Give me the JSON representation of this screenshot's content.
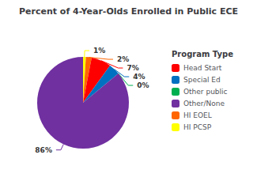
{
  "chart_data": {
    "type": "pie",
    "title": "Percent of 4-Year-Olds Enrolled in Public ECE",
    "categories": [
      "HI PCSP",
      "HI EOEL",
      "Head Start",
      "Special Ed",
      "Other public",
      "Other/None"
    ],
    "values": [
      1,
      2,
      7,
      4,
      0,
      86
    ],
    "value_labels": [
      "1%",
      "2%",
      "7%",
      "4%",
      "0%",
      "86%"
    ],
    "colors": [
      "#FFFF00",
      "#FF6600",
      "#FF0000",
      "#0070C0",
      "#00B050",
      "#7030A0"
    ],
    "data_labels": true,
    "legend": "right",
    "legend_title": "Program Type",
    "legend_entries": [
      "Head Start",
      "Special Ed",
      "Other public",
      "Other/None",
      "HI EOEL",
      "HI PCSP"
    ]
  }
}
